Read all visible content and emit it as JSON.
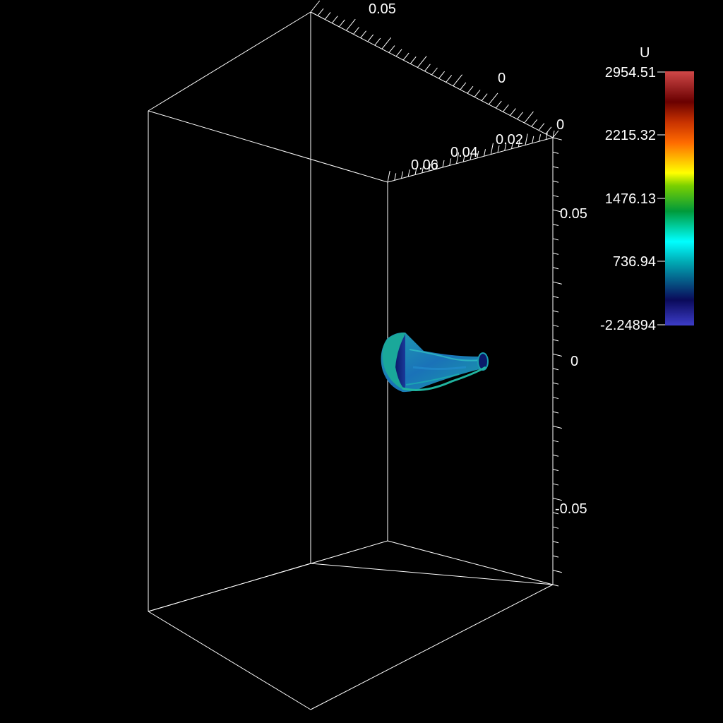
{
  "scene": {
    "background": "#000000",
    "box_color": "#ffffff"
  },
  "axes": {
    "top_back_label": "0.05",
    "top_back_zero": "0",
    "top_front_zero": "0",
    "front_ticks": [
      "0.06",
      "0.04",
      "0.02"
    ],
    "right_axis": [
      "0.05",
      "0",
      "-0.05"
    ]
  },
  "colorbar": {
    "title": "U",
    "ticks": [
      "2954.51",
      "2215.32",
      "1476.13",
      "736.94",
      "-2.24894"
    ],
    "range": [
      -2.24894,
      2954.51
    ],
    "colors": [
      "#3f3fbf",
      "#0a0a5a",
      "#00ffff",
      "#009a3a",
      "#ffff00",
      "#ff6a00",
      "#6a0000",
      "#c83c3c"
    ]
  },
  "object": {
    "colors": [
      "#0c2a7a",
      "#1a6fb0",
      "#1bb4c2",
      "#2a8f7a"
    ]
  }
}
